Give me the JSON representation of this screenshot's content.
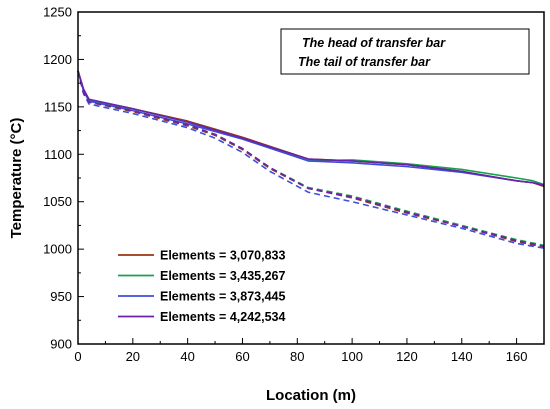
{
  "chart_data": {
    "type": "line",
    "title": "",
    "xlabel": "Location (m)",
    "ylabel": "Temperature (°C)",
    "xlim": [
      0,
      170
    ],
    "ylim": [
      900,
      1250
    ],
    "xticks": [
      0,
      20,
      40,
      60,
      80,
      100,
      120,
      140,
      160
    ],
    "yticks": [
      900,
      950,
      1000,
      1050,
      1100,
      1150,
      1200,
      1250
    ],
    "grid": false,
    "legend_position": "bottom-left",
    "annotations": [
      "The head of transfer bar",
      "The tail of transfer bar"
    ],
    "line_styles": {
      "head": "solid",
      "tail": "dashed"
    },
    "series": [
      {
        "name": "Elements = 3,070,833",
        "color": "#9a3412",
        "head": {
          "x": [
            0,
            2,
            4,
            20,
            40,
            60,
            84,
            100,
            120,
            140,
            160,
            166,
            170
          ],
          "y": [
            1188,
            1168,
            1157,
            1148,
            1135,
            1118,
            1095,
            1093,
            1089,
            1082,
            1072,
            1070,
            1066
          ]
        },
        "tail": {
          "x": [
            0,
            2,
            4,
            20,
            40,
            50,
            60,
            70,
            84,
            100,
            120,
            140,
            160,
            170
          ],
          "y": [
            1188,
            1165,
            1155,
            1145,
            1130,
            1120,
            1105,
            1085,
            1064,
            1054,
            1038,
            1024,
            1008,
            1002
          ]
        }
      },
      {
        "name": "Elements = 3,435,267",
        "color": "#16a34a",
        "head": {
          "x": [
            0,
            2,
            4,
            20,
            40,
            60,
            84,
            100,
            120,
            140,
            160,
            166,
            170
          ],
          "y": [
            1188,
            1168,
            1157,
            1148,
            1134,
            1117,
            1093,
            1094,
            1090,
            1084,
            1075,
            1072,
            1068
          ]
        },
        "tail": {
          "x": [
            0,
            2,
            4,
            20,
            40,
            50,
            60,
            70,
            84,
            100,
            120,
            140,
            160,
            170
          ],
          "y": [
            1188,
            1165,
            1155,
            1146,
            1131,
            1121,
            1106,
            1086,
            1065,
            1056,
            1040,
            1025,
            1010,
            1004
          ]
        }
      },
      {
        "name": "Elements = 3,873,445",
        "color": "#3b4fd8",
        "head": {
          "x": [
            0,
            2,
            4,
            20,
            40,
            60,
            84,
            100,
            120,
            140,
            160,
            166,
            170
          ],
          "y": [
            1188,
            1167,
            1156,
            1146,
            1132,
            1116,
            1093,
            1091,
            1087,
            1081,
            1072,
            1070,
            1068
          ]
        },
        "tail": {
          "x": [
            0,
            2,
            4,
            20,
            40,
            50,
            60,
            70,
            84,
            100,
            120,
            140,
            160,
            170
          ],
          "y": [
            1188,
            1164,
            1153,
            1143,
            1128,
            1117,
            1102,
            1082,
            1060,
            1050,
            1036,
            1022,
            1006,
            1001
          ]
        }
      },
      {
        "name": "Elements = 4,242,534",
        "color": "#6b21a8",
        "head": {
          "x": [
            0,
            2,
            4,
            20,
            40,
            60,
            84,
            100,
            120,
            140,
            160,
            166,
            170
          ],
          "y": [
            1188,
            1169,
            1158,
            1148,
            1134,
            1117,
            1095,
            1093,
            1089,
            1082,
            1072,
            1070,
            1067
          ]
        },
        "tail": {
          "x": [
            0,
            2,
            4,
            20,
            40,
            50,
            60,
            70,
            84,
            100,
            120,
            140,
            160,
            170
          ],
          "y": [
            1188,
            1165,
            1155,
            1146,
            1131,
            1121,
            1106,
            1086,
            1064,
            1055,
            1039,
            1024,
            1009,
            1003
          ]
        }
      }
    ]
  }
}
